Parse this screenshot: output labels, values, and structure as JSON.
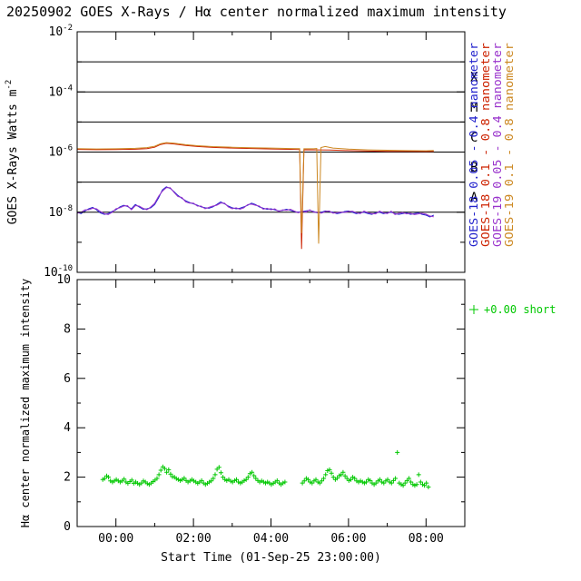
{
  "title": "20250902 GOES X-Rays / Hα center normalized maximum intensity",
  "colors": {
    "axis": "#000000",
    "background": "#ffffff",
    "blue": "#2222cc",
    "red": "#cc2200",
    "purple": "#9933cc",
    "orange": "#cc8822",
    "green": "#00c800"
  },
  "chart_data": [
    {
      "type": "line",
      "panel": "goes-xray",
      "ylabel_base": "GOES X-Rays Watts m",
      "ylabel_sup": "-2",
      "yscale": "log",
      "ylim_exp": [
        -10,
        -2
      ],
      "ytick_exponents": [
        -2,
        -4,
        -6,
        -8,
        -10
      ],
      "gridline_exponents": [
        -3,
        -4,
        -5,
        -6,
        -7,
        -8
      ],
      "flare_class_letters": [
        {
          "label": "X",
          "log_center": -3.5
        },
        {
          "label": "M",
          "log_center": -4.5
        },
        {
          "label": "C",
          "log_center": -5.5
        },
        {
          "label": "B",
          "log_center": -6.5
        },
        {
          "label": "A",
          "log_center": -7.5
        }
      ],
      "x_hours_range": [
        0,
        10
      ],
      "x_major_ticks": [
        {
          "t": 1,
          "label": "00:00"
        },
        {
          "t": 3,
          "label": "02:00"
        },
        {
          "t": 5,
          "label": "04:00"
        },
        {
          "t": 7,
          "label": "06:00"
        },
        {
          "t": 9,
          "label": "08:00"
        }
      ],
      "x_minor_ticks": [
        0,
        2,
        4,
        6,
        8,
        10
      ],
      "legend_rotated": [
        {
          "label": "GOES-18 0.05 - 0.4 nanometer",
          "color_key": "blue"
        },
        {
          "label": "GOES-18 0.1 - 0.8 nanometer",
          "color_key": "red"
        },
        {
          "label": "GOES-19 0.05 - 0.4 nanometer",
          "color_key": "purple"
        },
        {
          "label": "GOES-19 0.1 - 0.8 nanometer",
          "color_key": "orange"
        }
      ],
      "series": [
        {
          "name": "GOES-18 0.05 - 0.4 nanometer",
          "color_key": "blue",
          "t0": 0,
          "dt": 0.1,
          "scale": 1e-09,
          "values": [
            10,
            9,
            11,
            13,
            14.5,
            12,
            9.5,
            8.5,
            9,
            10.5,
            12,
            15,
            17,
            15.5,
            13,
            18,
            15,
            12.5,
            13,
            14,
            18,
            30,
            55,
            70,
            62,
            48,
            36,
            29,
            24,
            21,
            19,
            17,
            15,
            14,
            13.5,
            15,
            18,
            22,
            19,
            16,
            14,
            13,
            13.5,
            15,
            17,
            20,
            18,
            15,
            13.5,
            12.5,
            13,
            12,
            11,
            11.5,
            12.5,
            11.5,
            10.5,
            10,
            10.5,
            11,
            11.5,
            10.5,
            9.5,
            10,
            11,
            10.5,
            10,
            9,
            9.5,
            10.5,
            11,
            10,
            9,
            9.5,
            10,
            9,
            8.5,
            9.5,
            10,
            9,
            9.5,
            10,
            9,
            8.5,
            9,
            9.5,
            8.5,
            9,
            9.5,
            8.5,
            8,
            7,
            8
          ]
        },
        {
          "name": "GOES-18 0.1 - 0.8 nanometer",
          "color_key": "red",
          "points": [
            [
              0,
              1.22e-06
            ],
            [
              0.5,
              1.2e-06
            ],
            [
              1.0,
              1.21e-06
            ],
            [
              1.5,
              1.24e-06
            ],
            [
              1.8,
              1.3e-06
            ],
            [
              2.0,
              1.45e-06
            ],
            [
              2.15,
              1.78e-06
            ],
            [
              2.3,
              1.95e-06
            ],
            [
              2.5,
              1.86e-06
            ],
            [
              2.8,
              1.66e-06
            ],
            [
              3.1,
              1.53e-06
            ],
            [
              3.5,
              1.43e-06
            ],
            [
              4.0,
              1.36e-06
            ],
            [
              4.5,
              1.31e-06
            ],
            [
              5.0,
              1.27e-06
            ],
            [
              5.5,
              1.23e-06
            ],
            [
              5.74,
              1.21e-06
            ],
            [
              5.79,
              6e-10
            ],
            [
              5.85,
              1.19e-06
            ],
            [
              6.5,
              1.17e-06
            ],
            [
              7.0,
              1.12e-06
            ],
            [
              7.5,
              1.08e-06
            ],
            [
              8.0,
              1.06e-06
            ],
            [
              8.5,
              1.05e-06
            ],
            [
              9.0,
              1.04e-06
            ],
            [
              9.2,
              1.05e-06
            ]
          ]
        },
        {
          "name": "GOES-19 0.05 - 0.4 nanometer",
          "color_key": "purple",
          "t0": 0,
          "dt": 0.1,
          "scale": 1e-09,
          "values": [
            9.2,
            10,
            12,
            12,
            13.5,
            13,
            10.5,
            9,
            8.3,
            9.8,
            13,
            14,
            16,
            16.5,
            12,
            16.5,
            16,
            13.5,
            12,
            15,
            20,
            34,
            50,
            65,
            65,
            45,
            33,
            31,
            22,
            20,
            20,
            16,
            16,
            13,
            14.5,
            16,
            17,
            20,
            20,
            15,
            13,
            14,
            12.5,
            14,
            18,
            18.5,
            17,
            16,
            12.5,
            13.5,
            12,
            13,
            10.5,
            12,
            11.5,
            12.5,
            11,
            9.5,
            11,
            10,
            12,
            10,
            10,
            9.2,
            10.5,
            11,
            9.3,
            9.6,
            10,
            9.8,
            10.5,
            10.8,
            9.6,
            9,
            10.8,
            9.6,
            9,
            8.8,
            10.8,
            9.6,
            9,
            10.8,
            8.4,
            9.2,
            9.7,
            8.8,
            9.2,
            8.4,
            8.8,
            9.2,
            8.6,
            7.5,
            7
          ]
        },
        {
          "name": "GOES-19 0.1 - 0.8 nanometer",
          "color_key": "orange",
          "points": [
            [
              0,
              1.3e-06
            ],
            [
              0.5,
              1.27e-06
            ],
            [
              1.0,
              1.28e-06
            ],
            [
              1.5,
              1.33e-06
            ],
            [
              1.8,
              1.41e-06
            ],
            [
              2.0,
              1.56e-06
            ],
            [
              2.15,
              1.88e-06
            ],
            [
              2.3,
              2.06e-06
            ],
            [
              2.5,
              1.96e-06
            ],
            [
              2.8,
              1.76e-06
            ],
            [
              3.1,
              1.63e-06
            ],
            [
              3.5,
              1.52e-06
            ],
            [
              4.0,
              1.45e-06
            ],
            [
              4.5,
              1.4e-06
            ],
            [
              5.0,
              1.36e-06
            ],
            [
              5.5,
              1.31e-06
            ],
            [
              5.74,
              1.29e-06
            ],
            [
              5.79,
              2e-09
            ],
            [
              5.85,
              1.28e-06
            ],
            [
              6.1,
              1.28e-06
            ],
            [
              6.18,
              1.31e-06
            ],
            [
              6.23,
              9e-10
            ],
            [
              6.29,
              1.42e-06
            ],
            [
              6.4,
              1.53e-06
            ],
            [
              6.6,
              1.36e-06
            ],
            [
              7.0,
              1.25e-06
            ],
            [
              7.5,
              1.18e-06
            ],
            [
              8.0,
              1.15e-06
            ],
            [
              8.5,
              1.12e-06
            ],
            [
              9.0,
              1.1e-06
            ],
            [
              9.2,
              1.13e-06
            ]
          ]
        }
      ]
    },
    {
      "type": "scatter",
      "panel": "halpha",
      "ylabel": "Hα center normalized maximum intensity",
      "xlabel": "Start Time (01-Sep-25 23:00:00)",
      "ylim": [
        0,
        10
      ],
      "yticks": [
        0,
        2,
        4,
        6,
        8,
        10
      ],
      "y_minor_ticks": [
        1,
        3,
        5,
        7,
        9
      ],
      "legend": {
        "marker": "+",
        "label": "+0.00 short"
      },
      "series": [
        {
          "name": "Halpha center normalized maximum intensity",
          "color_key": "green",
          "marker": "+",
          "t0": 0.66,
          "dt": 0.05,
          "values": [
            1.9,
            1.95,
            2.05,
            2.0,
            1.85,
            1.8,
            1.85,
            1.9,
            1.85,
            1.8,
            1.85,
            1.92,
            1.8,
            1.75,
            1.82,
            1.88,
            1.75,
            1.8,
            1.75,
            1.7,
            1.76,
            1.85,
            1.8,
            1.74,
            1.7,
            1.76,
            1.82,
            1.88,
            1.95,
            2.1,
            2.28,
            2.42,
            2.35,
            2.2,
            2.3,
            2.12,
            2.02,
            2.0,
            1.94,
            1.9,
            1.86,
            1.9,
            1.96,
            1.86,
            1.8,
            1.85,
            1.9,
            1.85,
            1.8,
            1.75,
            1.8,
            1.86,
            1.76,
            1.7,
            1.75,
            1.8,
            1.85,
            1.95,
            2.1,
            2.32,
            2.4,
            2.18,
            2.0,
            1.9,
            1.86,
            1.9,
            1.84,
            1.8,
            1.86,
            1.9,
            1.8,
            1.76,
            1.8,
            1.86,
            1.9,
            2.0,
            2.14,
            2.2,
            2.06,
            1.95,
            1.86,
            1.8,
            1.85,
            1.8,
            1.76,
            1.8,
            1.76,
            1.7,
            1.75,
            1.8,
            1.86,
            1.76,
            1.7,
            1.76,
            1.8,
            null,
            null,
            null,
            null,
            null,
            null,
            null,
            null,
            1.76,
            1.85,
            1.95,
            1.9,
            1.8,
            1.76,
            1.85,
            1.9,
            1.8,
            1.76,
            1.85,
            1.95,
            2.1,
            2.26,
            2.3,
            2.16,
            2.0,
            1.9,
            1.96,
            2.06,
            2.1,
            2.2,
            2.05,
            1.95,
            1.86,
            1.9,
            2.0,
            1.95,
            1.85,
            1.8,
            1.85,
            1.8,
            1.76,
            1.8,
            1.9,
            1.86,
            1.76,
            1.7,
            1.76,
            1.85,
            1.9,
            1.8,
            1.76,
            1.85,
            1.9,
            1.8,
            1.76,
            1.86,
            1.95,
            3.0,
            1.76,
            1.7,
            1.66,
            1.76,
            1.86,
            1.95,
            1.8,
            1.7,
            1.66,
            1.7,
            2.1,
            1.8,
            1.7,
            1.66,
            1.76,
            1.6
          ]
        }
      ]
    }
  ]
}
